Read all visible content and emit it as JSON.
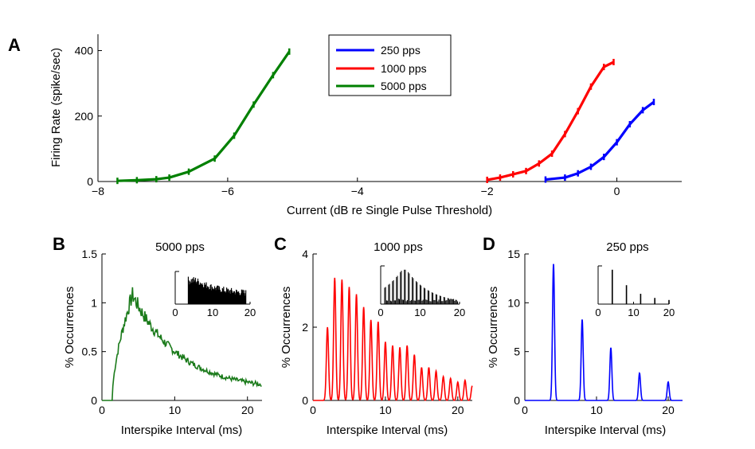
{
  "panel_labels": {
    "a": "A",
    "b": "B",
    "c": "C",
    "d": "D"
  },
  "chart_data": [
    {
      "panel": "A",
      "type": "line",
      "title": "",
      "xlabel": "Current (dB re Single Pulse Threshold)",
      "ylabel": "Firing Rate (spike/sec)",
      "xlim": [
        -8,
        1
      ],
      "ylim": [
        0,
        450
      ],
      "xticks": [
        -8,
        -6,
        -4,
        -2,
        0
      ],
      "xtick_labels": [
        "−8",
        "−6",
        "−4",
        "−2",
        "0"
      ],
      "yticks": [
        0,
        200,
        400
      ],
      "ytick_labels": [
        "0",
        "200",
        "400"
      ],
      "legend_position": "top-center",
      "series": [
        {
          "name": "250 pps",
          "color": "#0000ff",
          "x": [
            -1.1,
            -0.8,
            -0.6,
            -0.4,
            -0.2,
            0.0,
            0.2,
            0.4,
            0.57
          ],
          "y": [
            6,
            12,
            25,
            45,
            75,
            120,
            175,
            218,
            243
          ]
        },
        {
          "name": "1000 pps",
          "color": "#ff0000",
          "x": [
            -2.0,
            -1.8,
            -1.6,
            -1.4,
            -1.2,
            -1.0,
            -0.8,
            -0.6,
            -0.4,
            -0.2,
            -0.05
          ],
          "y": [
            5,
            12,
            22,
            32,
            55,
            85,
            145,
            215,
            290,
            350,
            365
          ]
        },
        {
          "name": "5000 pps",
          "color": "#008000",
          "x": [
            -7.7,
            -7.4,
            -7.1,
            -6.9,
            -6.6,
            -6.2,
            -5.9,
            -5.6,
            -5.3,
            -5.05
          ],
          "y": [
            2,
            4,
            7,
            12,
            30,
            70,
            140,
            235,
            325,
            397
          ]
        }
      ]
    },
    {
      "panel": "B",
      "type": "line",
      "title": "5000 pps",
      "xlabel": "Interspike Interval (ms)",
      "ylabel": "% Occurrences",
      "xlim": [
        0,
        22
      ],
      "ylim": [
        0,
        1.5
      ],
      "xticks": [
        0,
        10,
        20
      ],
      "xtick_labels": [
        "0",
        "10",
        "20"
      ],
      "yticks": [
        0,
        0.5,
        1,
        1.5
      ],
      "ytick_labels": [
        "0",
        "0.5",
        "1",
        "1.5"
      ],
      "color": "#1a7a1a",
      "envelope": {
        "peak_x": 4.2,
        "peak_y": 1.08,
        "tail_y": 0.1
      },
      "inset": {
        "xticks": [
          0,
          10,
          20
        ],
        "xtick_labels": [
          "0",
          "10",
          "20"
        ],
        "xlim": [
          0,
          20
        ],
        "color": "#000000"
      }
    },
    {
      "panel": "C",
      "type": "line",
      "title": "1000 pps",
      "xlabel": "Interspike Interval (ms)",
      "ylabel": "% Occurrences",
      "xlim": [
        0,
        22
      ],
      "ylim": [
        0,
        4
      ],
      "xticks": [
        0,
        10,
        20
      ],
      "xtick_labels": [
        "0",
        "10",
        "20"
      ],
      "yticks": [
        0,
        2,
        4
      ],
      "ytick_labels": [
        "0",
        "2",
        "4"
      ],
      "color": "#ff0000",
      "peaks": {
        "x": [
          2,
          3,
          4,
          5,
          6,
          7,
          8,
          9,
          10,
          11,
          12,
          13,
          14,
          15,
          16,
          17,
          18,
          19,
          20,
          21,
          22
        ],
        "y": [
          2.0,
          3.35,
          3.3,
          3.1,
          2.9,
          2.55,
          2.2,
          2.15,
          1.6,
          1.5,
          1.45,
          1.5,
          1.25,
          0.9,
          0.9,
          0.8,
          0.65,
          0.6,
          0.5,
          0.55,
          0.4
        ]
      },
      "inset": {
        "xticks": [
          0,
          10,
          20
        ],
        "xtick_labels": [
          "0",
          "10",
          "20"
        ],
        "xlim": [
          0,
          20
        ],
        "color": "#000000"
      }
    },
    {
      "panel": "D",
      "type": "line",
      "title": "250 pps",
      "xlabel": "Interspike Interval (ms)",
      "ylabel": "% Occurrences",
      "xlim": [
        0,
        22
      ],
      "ylim": [
        0,
        15
      ],
      "xticks": [
        0,
        10,
        20
      ],
      "xtick_labels": [
        "0",
        "10",
        "20"
      ],
      "yticks": [
        0,
        5,
        10,
        15
      ],
      "ytick_labels": [
        "0",
        "5",
        "10",
        "15"
      ],
      "color": "#0000ff",
      "peaks": {
        "x": [
          4,
          8,
          12,
          16,
          20
        ],
        "y": [
          14.0,
          8.3,
          5.4,
          2.8,
          1.9
        ]
      },
      "inset": {
        "xticks": [
          0,
          10,
          20
        ],
        "xtick_labels": [
          "0",
          "10",
          "20"
        ],
        "xlim": [
          0,
          20
        ],
        "color": "#000000"
      }
    }
  ]
}
